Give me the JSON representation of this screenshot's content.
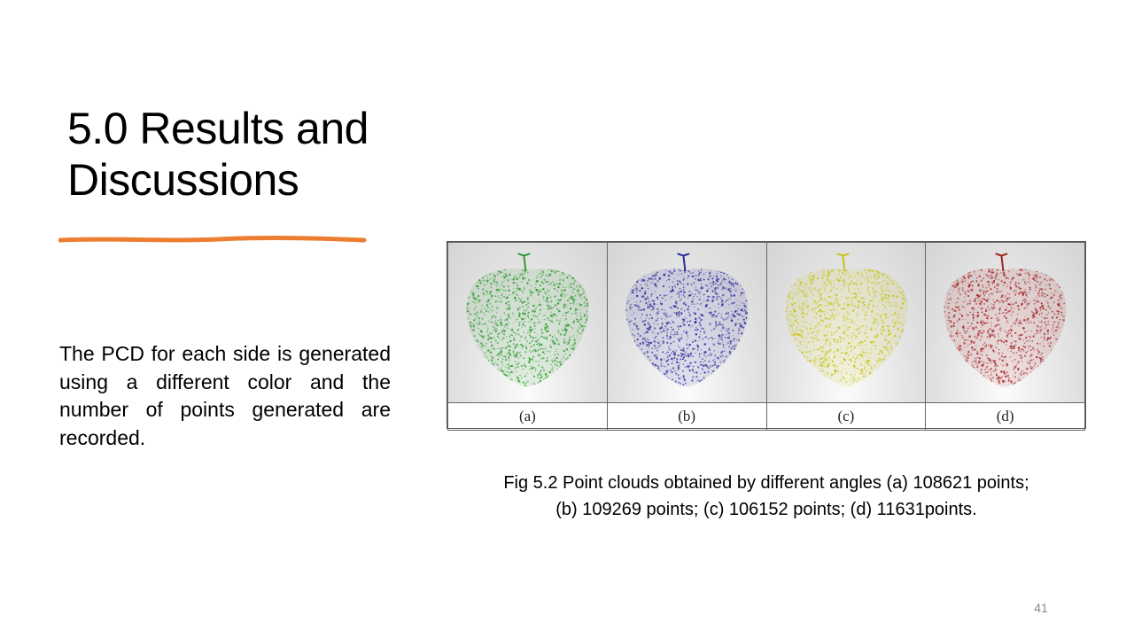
{
  "title": {
    "line1": "5.0  Results and",
    "line2": "Discussions"
  },
  "accent_color": "#ED7D31",
  "body_text": "The PCD for each side is generated using a different color and the number of points generated are recorded.",
  "figure": {
    "panels": [
      {
        "label": "(a)",
        "color": "#2e9a2e"
      },
      {
        "label": "(b)",
        "color": "#2b2b9c"
      },
      {
        "label": "(c)",
        "color": "#c9c41a"
      },
      {
        "label": "(d)",
        "color": "#a51f1f"
      }
    ]
  },
  "caption": {
    "line1": "Fig 5.2  Point clouds obtained by different angles (a) 108621 points;",
    "line2": "(b) 109269 points; (c) 106152 points; (d) 11631points."
  },
  "page_number": "41"
}
